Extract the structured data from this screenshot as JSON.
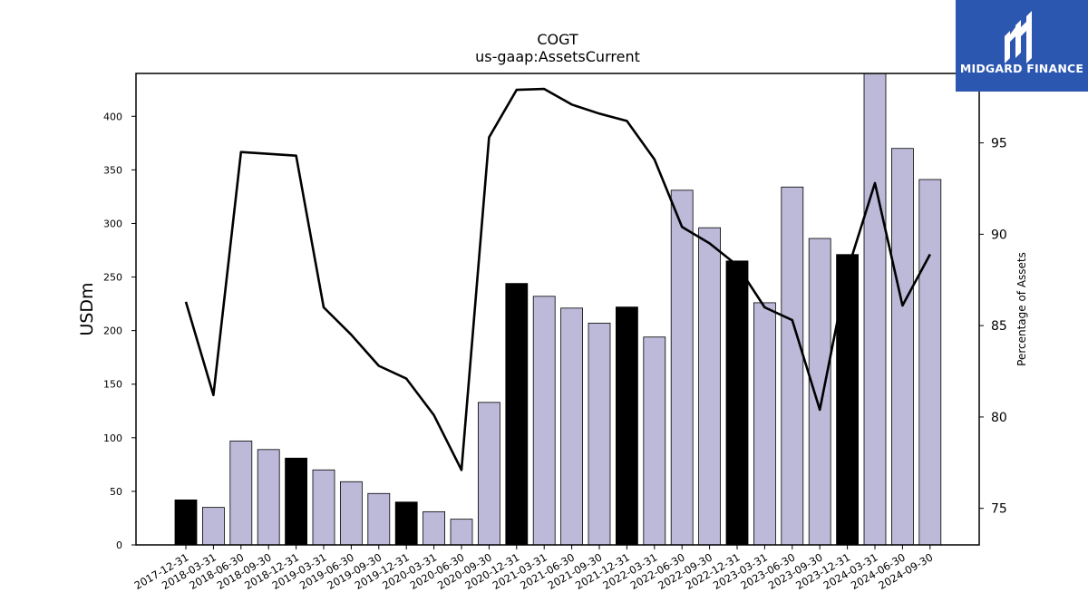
{
  "chart_data": {
    "type": "bar",
    "title": "COGT",
    "subtitle": "us-gaap:AssetsCurrent",
    "ylabel": "USDm",
    "y2label": "Percentage of Assets",
    "ylim": [
      0,
      440
    ],
    "y2lim": [
      73,
      98.8
    ],
    "yticks": [
      0,
      50,
      100,
      150,
      200,
      250,
      300,
      350,
      400
    ],
    "y2ticks": [
      75,
      80,
      85,
      90,
      95
    ],
    "categories": [
      "2017-12-31",
      "2018-03-31",
      "2018-06-30",
      "2018-09-30",
      "2018-12-31",
      "2019-03-31",
      "2019-06-30",
      "2019-09-30",
      "2019-12-31",
      "2020-03-31",
      "2020-06-30",
      "2020-09-30",
      "2020-12-31",
      "2021-03-31",
      "2021-06-30",
      "2021-09-30",
      "2021-12-31",
      "2022-03-31",
      "2022-06-30",
      "2022-09-30",
      "2022-12-31",
      "2023-03-31",
      "2023-06-30",
      "2023-09-30",
      "2023-12-31",
      "2024-03-31",
      "2024-06-30",
      "2024-09-30"
    ],
    "series": [
      {
        "kind": "bar",
        "values": [
          42,
          35,
          97,
          89,
          81,
          70,
          59,
          48,
          40,
          31,
          24,
          133,
          244,
          232,
          221,
          207,
          222,
          194,
          331,
          296,
          265,
          226,
          334,
          286,
          271,
          440,
          370,
          341
        ],
        "year_end": [
          true,
          false,
          false,
          false,
          true,
          false,
          false,
          false,
          true,
          false,
          false,
          false,
          true,
          false,
          false,
          false,
          true,
          false,
          false,
          false,
          true,
          false,
          false,
          false,
          true,
          false,
          false,
          false
        ],
        "color_year_end": "#000000",
        "color_quarter": "#bcb9d9"
      },
      {
        "kind": "line",
        "axis": "right",
        "values": [
          86.3,
          81.2,
          94.5,
          94.4,
          94.3,
          86.0,
          84.5,
          82.8,
          82.1,
          80.1,
          77.1,
          95.3,
          97.9,
          97.95,
          97.1,
          96.6,
          96.2,
          94.1,
          90.4,
          89.5,
          88.3,
          86.0,
          85.3,
          80.4,
          88.0,
          92.8,
          86.1,
          88.9
        ],
        "color": "#000000"
      }
    ]
  },
  "logo": {
    "text": "MIDGARD FINANCE",
    "bg": "#2b57b0"
  }
}
